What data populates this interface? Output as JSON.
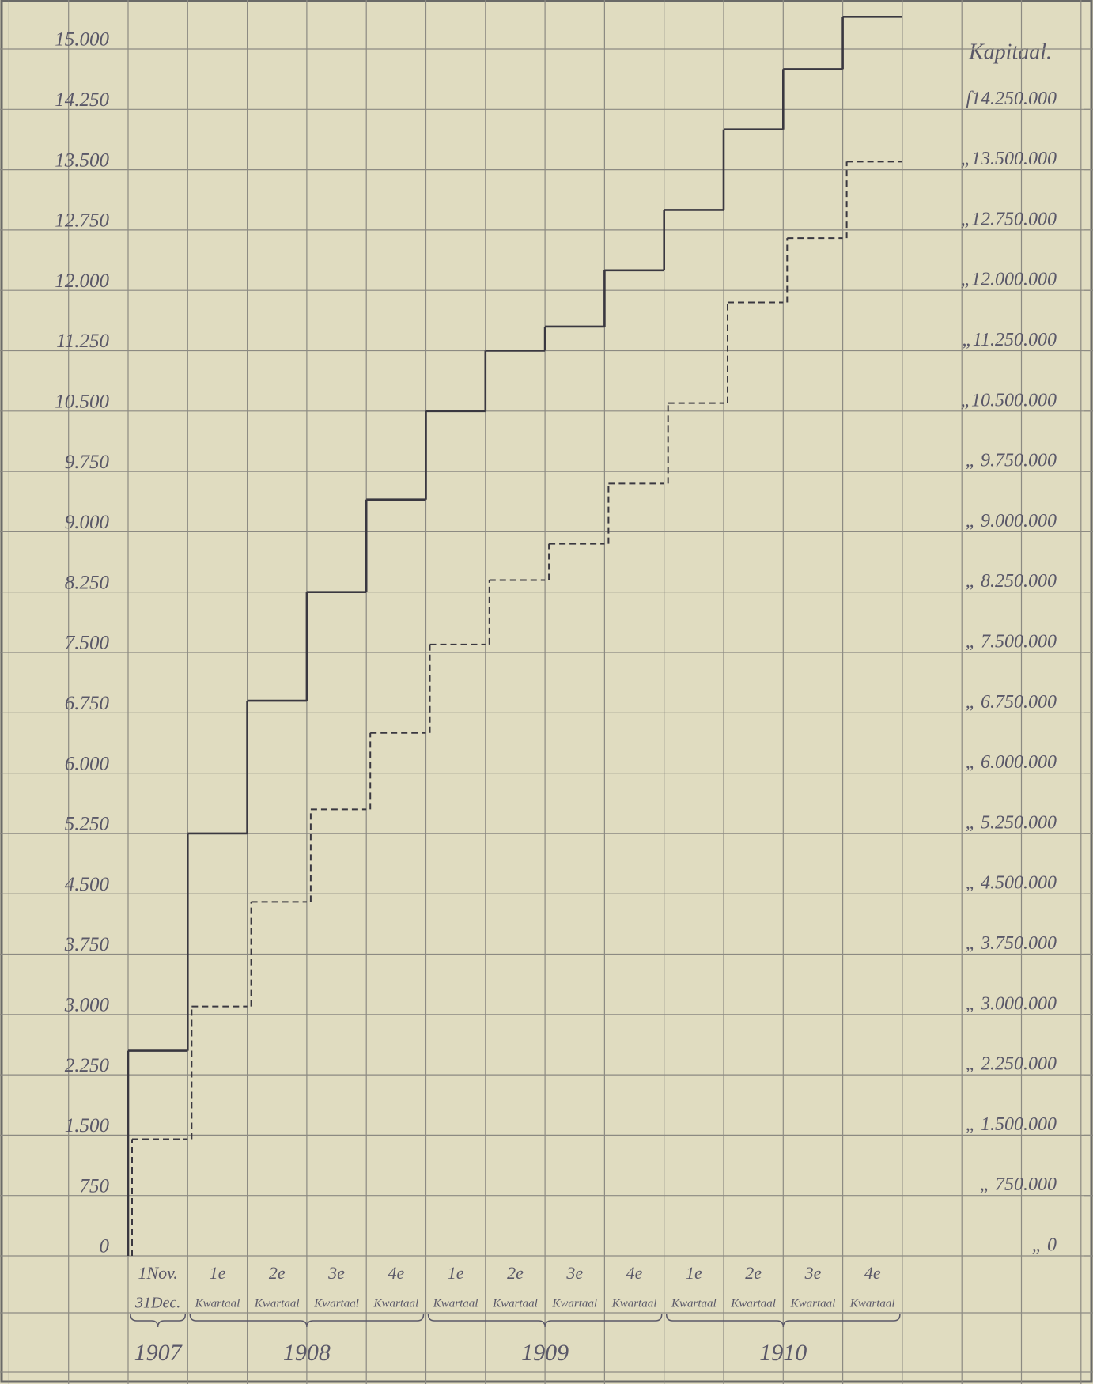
{
  "chart_data": {
    "type": "step",
    "y2label": "Kapitaal.",
    "categories": [
      [
        "1Nov.",
        "31Dec."
      ],
      [
        "1e",
        "Kwartaal"
      ],
      [
        "2e",
        "Kwartaal"
      ],
      [
        "3e",
        "Kwartaal"
      ],
      [
        "4e",
        "Kwartaal"
      ],
      [
        "1e",
        "Kwartaal"
      ],
      [
        "2e",
        "Kwartaal"
      ],
      [
        "3e",
        "Kwartaal"
      ],
      [
        "4e",
        "Kwartaal"
      ],
      [
        "1e",
        "Kwartaal"
      ],
      [
        "2e",
        "Kwartaal"
      ],
      [
        "3e",
        "Kwartaal"
      ],
      [
        "4e",
        "Kwartaal"
      ]
    ],
    "years": [
      {
        "label": "1907",
        "count": 1
      },
      {
        "label": "1908",
        "count": 4
      },
      {
        "label": "1909",
        "count": 4
      },
      {
        "label": "1910",
        "count": 4
      }
    ],
    "series": [
      {
        "color": "#3a3840",
        "style": "solid",
        "values": [
          2550,
          5250,
          6900,
          8250,
          9400,
          10500,
          11250,
          11550,
          12250,
          13000,
          14000,
          14750,
          15400
        ]
      },
      {
        "color": "#3a3840",
        "style": "dashed",
        "values": [
          1450,
          3100,
          4400,
          5550,
          6500,
          7600,
          8400,
          8850,
          9600,
          10600,
          11850,
          12650,
          13600
        ]
      }
    ],
    "ylim": [
      0,
      15000
    ],
    "yticks": [
      {
        "value": 0,
        "label": "0"
      },
      {
        "value": 750,
        "label": "750"
      },
      {
        "value": 1500,
        "label": "1.500"
      },
      {
        "value": 2250,
        "label": "2.250"
      },
      {
        "value": 3000,
        "label": "3.000"
      },
      {
        "value": 3750,
        "label": "3.750"
      },
      {
        "value": 4500,
        "label": "4.500"
      },
      {
        "value": 5250,
        "label": "5.250"
      },
      {
        "value": 6000,
        "label": "6.000"
      },
      {
        "value": 6750,
        "label": "6.750"
      },
      {
        "value": 7500,
        "label": "7.500"
      },
      {
        "value": 8250,
        "label": "8.250"
      },
      {
        "value": 9000,
        "label": "9.000"
      },
      {
        "value": 9750,
        "label": "9.750"
      },
      {
        "value": 10500,
        "label": "10.500"
      },
      {
        "value": 11250,
        "label": "11.250"
      },
      {
        "value": 12000,
        "label": "12.000"
      },
      {
        "value": 12750,
        "label": "12.750"
      },
      {
        "value": 13500,
        "label": "13.500"
      },
      {
        "value": 14250,
        "label": "14.250"
      },
      {
        "value": 15000,
        "label": "15.000"
      }
    ],
    "y2lim": [
      0,
      15000000
    ],
    "y2ticks": [
      {
        "value": 0,
        "label": "„ 0"
      },
      {
        "value": 750000,
        "label": "„ 750.000"
      },
      {
        "value": 1500000,
        "label": "„ 1.500.000"
      },
      {
        "value": 2250000,
        "label": "„ 2.250.000"
      },
      {
        "value": 3000000,
        "label": "„ 3.000.000"
      },
      {
        "value": 3750000,
        "label": "„ 3.750.000"
      },
      {
        "value": 4500000,
        "label": "„ 4.500.000"
      },
      {
        "value": 5250000,
        "label": "„ 5.250.000"
      },
      {
        "value": 6000000,
        "label": "„ 6.000.000"
      },
      {
        "value": 6750000,
        "label": "„ 6.750.000"
      },
      {
        "value": 7500000,
        "label": "„ 7.500.000"
      },
      {
        "value": 8250000,
        "label": "„ 8.250.000"
      },
      {
        "value": 9000000,
        "label": "„ 9.000.000"
      },
      {
        "value": 9750000,
        "label": "„ 9.750.000"
      },
      {
        "value": 10500000,
        "label": "„10.500.000"
      },
      {
        "value": 11250000,
        "label": "„11.250.000"
      },
      {
        "value": 12000000,
        "label": "„12.000.000"
      },
      {
        "value": 12750000,
        "label": "„12.750.000"
      },
      {
        "value": 13500000,
        "label": "„13.500.000"
      },
      {
        "value": 14250000,
        "label": "f14.250.000"
      }
    ],
    "grid": true
  }
}
